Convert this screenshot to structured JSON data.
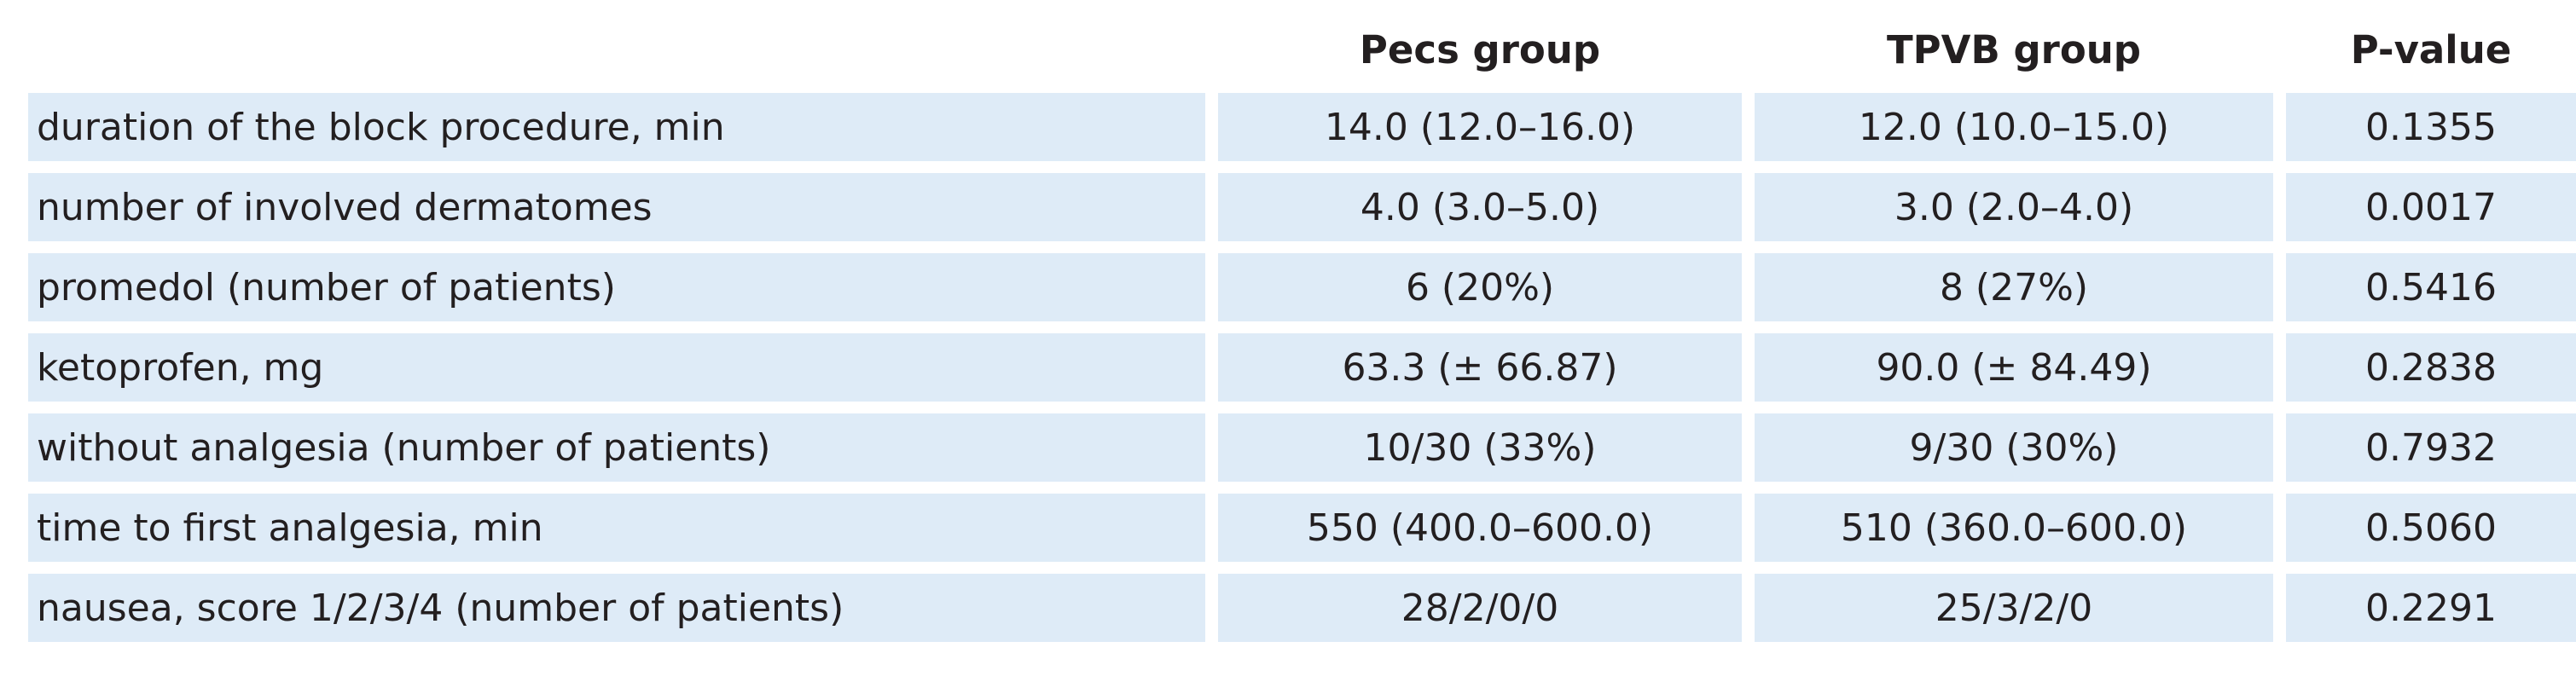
{
  "table": {
    "headers": [
      "",
      "Pecs group",
      "TPVB group",
      "P-value"
    ],
    "rows": [
      {
        "label": "duration of the block procedure, min",
        "pecs": "14.0 (12.0–16.0)",
        "tpvb": "12.0 (10.0–15.0)",
        "p": "0.1355"
      },
      {
        "label": "number of involved dermatomes",
        "pecs": "4.0 (3.0–5.0)",
        "tpvb": "3.0 (2.0–4.0)",
        "p": "0.0017"
      },
      {
        "label": "promedol (number of patients)",
        "pecs": "6 (20%)",
        "tpvb": "8 (27%)",
        "p": "0.5416"
      },
      {
        "label": "ketoprofen, mg",
        "pecs": "63.3 (± 66.87)",
        "tpvb": "90.0 (± 84.49)",
        "p": "0.2838"
      },
      {
        "label": "without analgesia (number of patients)",
        "pecs": "10/30 (33%)",
        "tpvb": "9/30 (30%)",
        "p": "0.7932"
      },
      {
        "label": "time to first analgesia, min",
        "pecs": "550 (400.0–600.0)",
        "tpvb": "510 (360.0–600.0)",
        "p": "0.5060"
      },
      {
        "label": "nausea, score 1/2/3/4 (number of patients)",
        "pecs": "28/2/0/0",
        "tpvb": "25/3/2/0",
        "p": "0.2291"
      }
    ]
  },
  "colors": {
    "row_background": "#deebf7",
    "text": "#231f20"
  }
}
